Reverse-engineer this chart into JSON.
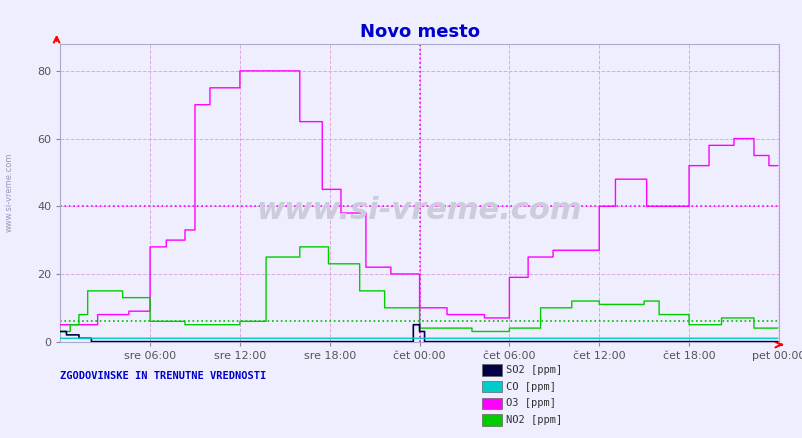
{
  "title": "Novo mesto",
  "title_color": "#0000cc",
  "bg_color": "#eeeeff",
  "plot_bg_color": "#eeeeff",
  "xlabel_ticks": [
    "sre 06:00",
    "sre 12:00",
    "sre 18:00",
    "čet 00:00",
    "čet 06:00",
    "čet 12:00",
    "čet 18:00",
    "pet 00:00"
  ],
  "yticks": [
    0,
    20,
    40,
    60,
    80
  ],
  "ylim": [
    0,
    88
  ],
  "xlim": [
    0,
    576
  ],
  "n_points": 576,
  "grid_color": "#ddaadd",
  "hline_color": "#ff00ff",
  "hline_y": 40,
  "hline2_color": "#00bb00",
  "hline2_y": 6,
  "vline_color": "#ff00ff",
  "vline_x": 288,
  "SO2_color": "#000044",
  "CO_color": "#00cccc",
  "O3_color": "#ff00ff",
  "NO2_color": "#00cc00",
  "watermark": "www.si-vreme.com",
  "watermark_color": "#ccccdd",
  "side_label": "www.si-vreme.com",
  "bottom_label": "ZGODOVINSKE IN TRENUTNE VREDNOSTI",
  "legend_items": [
    "SO2 [ppm]",
    "CO [ppm]",
    "O3 [ppm]",
    "NO2 [ppm]"
  ],
  "legend_colors": [
    "#000044",
    "#00cccc",
    "#ff00ff",
    "#00cc00"
  ],
  "tick_label_color": "#555555"
}
